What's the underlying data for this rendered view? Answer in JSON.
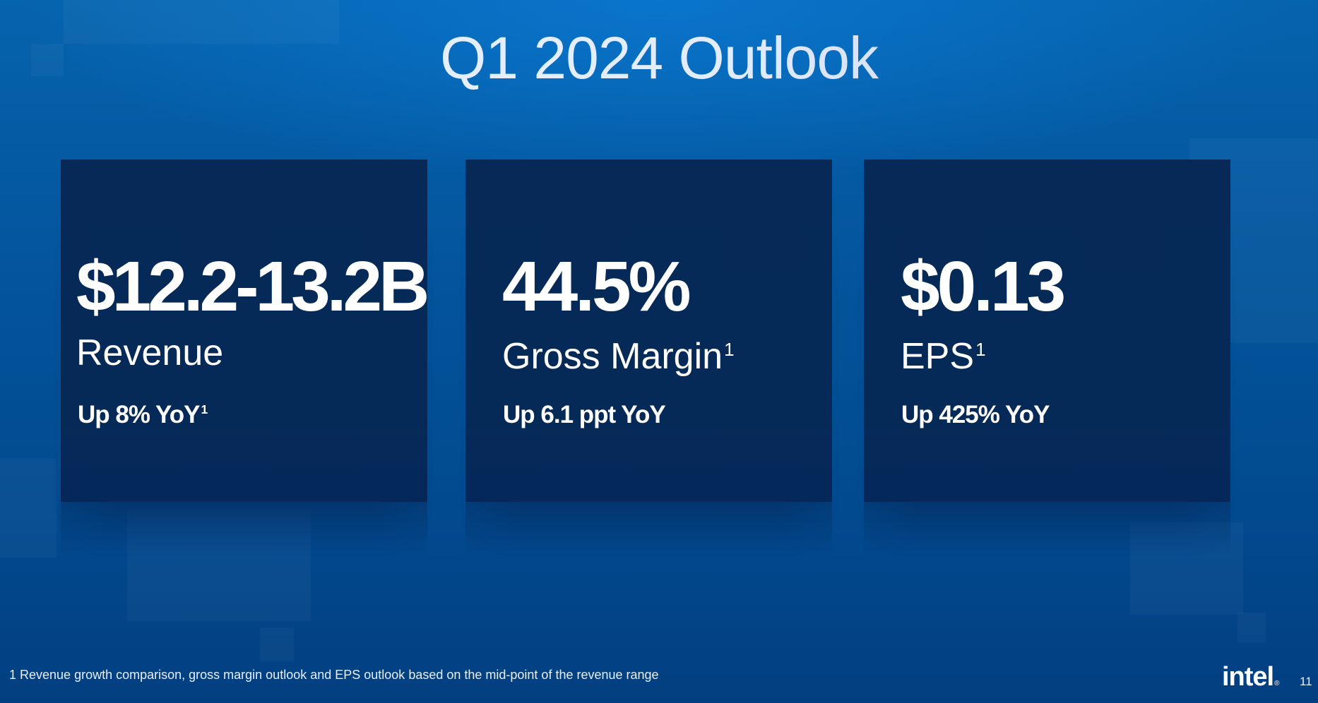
{
  "slide": {
    "title": "Q1 2024 Outlook",
    "cards": [
      {
        "value": "$12.2-13.2B",
        "label": "Revenue",
        "label_footnote": "",
        "sub": "Up 8% YoY",
        "sub_footnote": "1"
      },
      {
        "value": "44.5%",
        "label": "Gross Margin",
        "label_footnote": "1",
        "sub": "Up 6.1 ppt YoY",
        "sub_footnote": ""
      },
      {
        "value": "$0.13",
        "label": "EPS",
        "label_footnote": "1",
        "sub": "Up 425% YoY",
        "sub_footnote": ""
      }
    ],
    "footnote": "1 Revenue growth comparison, gross margin outlook and EPS outlook based on the mid-point of the revenue range",
    "logo_text": "intel",
    "logo_mark": "®",
    "page_number": "11"
  },
  "colors": {
    "background": "#03549c",
    "card": "#062a58",
    "text": "#ffffff"
  }
}
